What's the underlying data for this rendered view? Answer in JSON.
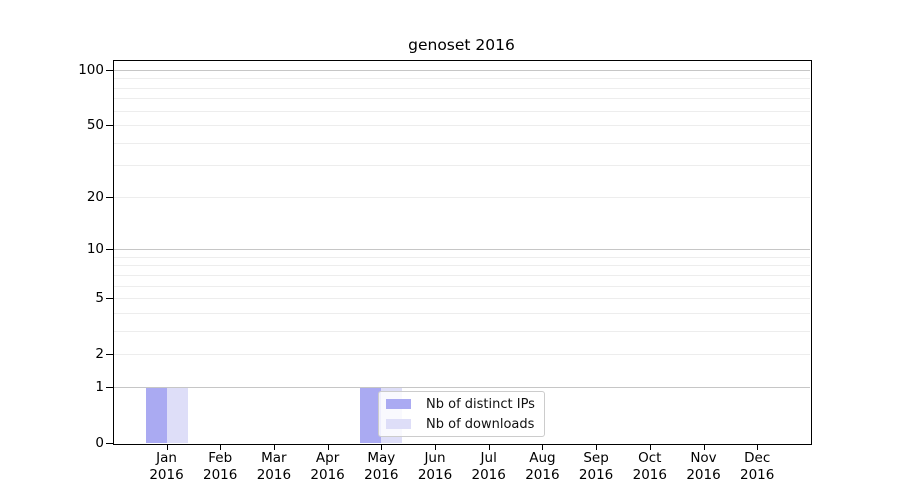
{
  "chart_data": {
    "type": "bar",
    "title": "genoset 2016",
    "categories": [
      "Jan 2016",
      "Feb 2016",
      "Mar 2016",
      "Apr 2016",
      "May 2016",
      "Jun 2016",
      "Jul 2016",
      "Aug 2016",
      "Sep 2016",
      "Oct 2016",
      "Nov 2016",
      "Dec 2016"
    ],
    "series": [
      {
        "name": "Nb of distinct IPs",
        "color": "#aaaaf2",
        "values": [
          1,
          0,
          0,
          0,
          1,
          0,
          0,
          0,
          0,
          0,
          0,
          0
        ]
      },
      {
        "name": "Nb of downloads",
        "color": "#dedef8",
        "values": [
          1,
          0,
          0,
          0,
          1,
          0,
          0,
          0,
          0,
          0,
          0,
          0
        ]
      }
    ],
    "xlabel": "",
    "ylabel": "",
    "yscale": "log1p",
    "ylim": [
      0,
      113
    ],
    "yticks": [
      0,
      1,
      2,
      5,
      10,
      20,
      50,
      100
    ],
    "grid": {
      "major_values": [
        1,
        10,
        100
      ],
      "minor_values": [
        2,
        3,
        4,
        5,
        6,
        7,
        8,
        9,
        20,
        30,
        40,
        50,
        60,
        70,
        80,
        90
      ],
      "major_color": "#c6c6c6",
      "minor_color": "#ededed"
    },
    "legend_position": "lower center-left, overlapping May bar"
  }
}
